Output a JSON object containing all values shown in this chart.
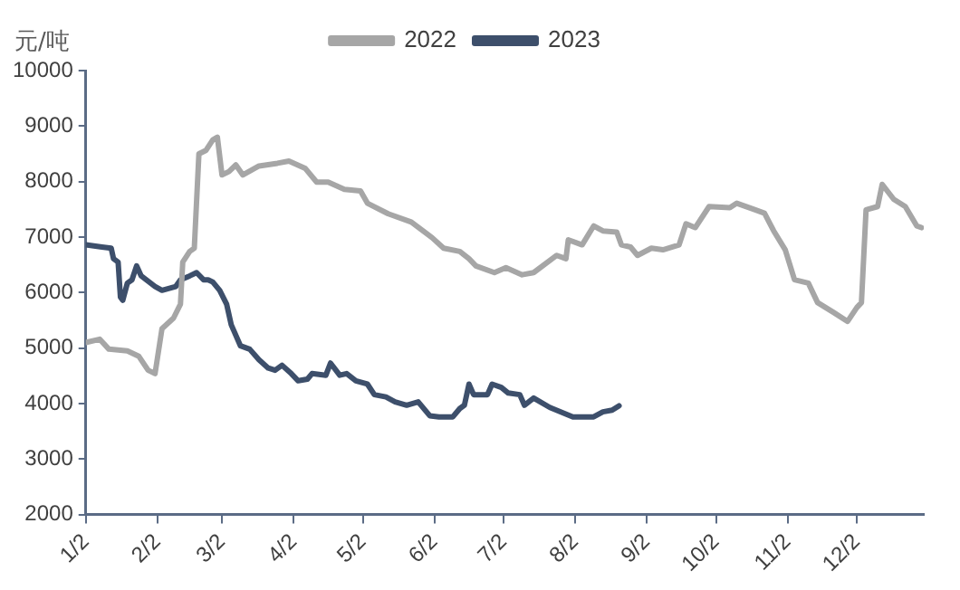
{
  "chart_data": {
    "type": "line",
    "ylabel": "元/吨",
    "legend": "top",
    "grid": false,
    "marker": "none",
    "line_style": "solid",
    "xlim": [
      "--01-02",
      "--12-31"
    ],
    "xticks": [
      {
        "value": "--01-02",
        "label": "1/2"
      },
      {
        "value": "--02-02",
        "label": "2/2"
      },
      {
        "value": "--03-02",
        "label": "3/2"
      },
      {
        "value": "--04-02",
        "label": "4/2"
      },
      {
        "value": "--05-02",
        "label": "5/2"
      },
      {
        "value": "--06-02",
        "label": "6/2"
      },
      {
        "value": "--07-02",
        "label": "7/2"
      },
      {
        "value": "--08-02",
        "label": "8/2"
      },
      {
        "value": "--09-02",
        "label": "9/2"
      },
      {
        "value": "--10-02",
        "label": "10/2"
      },
      {
        "value": "--11-02",
        "label": "11/2"
      },
      {
        "value": "--12-02",
        "label": "12/2"
      }
    ],
    "ylim": [
      2000,
      10000
    ],
    "yticks": [
      2000,
      3000,
      4000,
      5000,
      6000,
      7000,
      8000,
      9000,
      10000
    ],
    "series": [
      {
        "name": "2022",
        "color": "#a6a6a6",
        "x": [
          "--01-02",
          "--01-08",
          "--01-12",
          "--01-20",
          "--01-25",
          "--01-29",
          "--02-01",
          "--02-04",
          "--02-09",
          "--02-12",
          "--02-13",
          "--02-16",
          "--02-18",
          "--02-20",
          "--02-23",
          "--02-26",
          "--02-28",
          "--03-02",
          "--03-05",
          "--03-08",
          "--03-11",
          "--03-18",
          "--03-26",
          "--03-31",
          "--04-07",
          "--04-12",
          "--04-17",
          "--04-24",
          "--05-01",
          "--05-04",
          "--05-13",
          "--05-23",
          "--06-01",
          "--06-06",
          "--06-13",
          "--06-17",
          "--06-20",
          "--06-28",
          "--07-03",
          "--07-10",
          "--07-15",
          "--07-25",
          "--07-29",
          "--07-30",
          "--08-05",
          "--08-10",
          "--08-14",
          "--08-20",
          "--08-22",
          "--08-26",
          "--08-29",
          "--09-04",
          "--09-09",
          "--09-16",
          "--09-19",
          "--09-23",
          "--09-29",
          "--10-08",
          "--10-11",
          "--10-19",
          "--10-23",
          "--10-27",
          "--11-01",
          "--11-05",
          "--11-11",
          "--11-15",
          "--11-22",
          "--11-28",
          "--12-02",
          "--12-04",
          "--12-06",
          "--12-11",
          "--12-13",
          "--12-18",
          "--12-23",
          "--12-28",
          "--12-30"
        ],
        "values": [
          5100,
          5160,
          4980,
          4950,
          4850,
          4600,
          4540,
          5350,
          5540,
          5790,
          6550,
          6740,
          6800,
          8500,
          8560,
          8750,
          8800,
          8120,
          8180,
          8300,
          8120,
          8280,
          8330,
          8370,
          8240,
          7990,
          7990,
          7860,
          7830,
          7610,
          7420,
          7270,
          6990,
          6800,
          6740,
          6610,
          6480,
          6360,
          6450,
          6320,
          6360,
          6670,
          6610,
          6950,
          6860,
          7200,
          7110,
          7090,
          6860,
          6820,
          6670,
          6800,
          6770,
          6860,
          7240,
          7170,
          7550,
          7530,
          7610,
          7490,
          7430,
          7110,
          6770,
          6230,
          6170,
          5820,
          5640,
          5480,
          5730,
          5820,
          7490,
          7550,
          7950,
          7680,
          7550,
          7200,
          7170
        ]
      },
      {
        "name": "2023",
        "color": "#3d4f6b",
        "x": [
          "--01-02",
          "--01-09",
          "--01-13",
          "--01-14",
          "--01-16",
          "--01-17",
          "--01-18",
          "--01-20",
          "--01-22",
          "--01-24",
          "--01-26",
          "--02-01",
          "--02-04",
          "--02-10",
          "--02-12",
          "--02-16",
          "--02-19",
          "--02-22",
          "--02-24",
          "--02-26",
          "--03-01",
          "--03-04",
          "--03-06",
          "--03-10",
          "--03-14",
          "--03-18",
          "--03-22",
          "--03-25",
          "--03-28",
          "--04-01",
          "--04-04",
          "--04-08",
          "--04-10",
          "--04-16",
          "--04-18",
          "--04-22",
          "--04-25",
          "--04-29",
          "--05-04",
          "--05-07",
          "--05-12",
          "--05-16",
          "--05-21",
          "--05-26",
          "--05-31",
          "--06-04",
          "--06-10",
          "--06-13",
          "--06-15",
          "--06-17",
          "--06-19",
          "--06-25",
          "--06-27",
          "--07-01",
          "--07-04",
          "--07-09",
          "--07-11",
          "--07-15",
          "--07-22",
          "--08-01",
          "--08-10",
          "--08-14",
          "--08-18",
          "--08-21"
        ],
        "values": [
          6860,
          6820,
          6800,
          6610,
          6550,
          5920,
          5860,
          6170,
          6230,
          6480,
          6300,
          6110,
          6040,
          6110,
          6230,
          6300,
          6360,
          6230,
          6230,
          6190,
          6040,
          5790,
          5420,
          5040,
          4980,
          4790,
          4640,
          4600,
          4690,
          4540,
          4410,
          4440,
          4540,
          4510,
          4730,
          4510,
          4540,
          4410,
          4350,
          4160,
          4120,
          4030,
          3970,
          4030,
          3780,
          3760,
          3760,
          3910,
          3970,
          4350,
          4160,
          4160,
          4350,
          4290,
          4190,
          4160,
          3970,
          4100,
          3930,
          3760,
          3760,
          3850,
          3880,
          3960
        ]
      }
    ]
  }
}
